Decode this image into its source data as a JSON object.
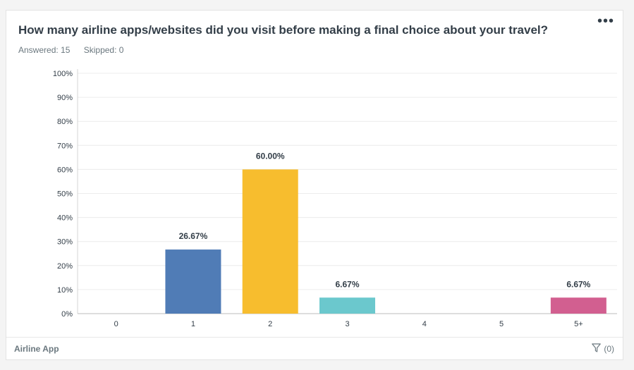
{
  "question": {
    "title": "How many airline apps/websites did you visit before making a final choice about your travel?",
    "answered_label": "Answered: 15",
    "skipped_label": "Skipped: 0"
  },
  "menu_glyph": "•••",
  "footer": {
    "label": "Airline App",
    "filter_count": "(0)"
  },
  "chart_data": {
    "type": "bar",
    "categories": [
      "0",
      "1",
      "2",
      "3",
      "4",
      "5",
      "5+"
    ],
    "values": [
      0,
      26.67,
      60.0,
      6.67,
      0,
      0,
      6.67
    ],
    "value_labels": [
      "",
      "26.67%",
      "60.00%",
      "6.67%",
      "",
      "",
      "6.67%"
    ],
    "colors": [
      "#507cb6",
      "#507cb6",
      "#f7bd2e",
      "#6bc8cd",
      "#507cb6",
      "#507cb6",
      "#d25f90"
    ],
    "ylim": [
      0,
      100
    ],
    "yticks": [
      "0%",
      "10%",
      "20%",
      "30%",
      "40%",
      "50%",
      "60%",
      "70%",
      "80%",
      "90%",
      "100%"
    ],
    "grid": true
  }
}
